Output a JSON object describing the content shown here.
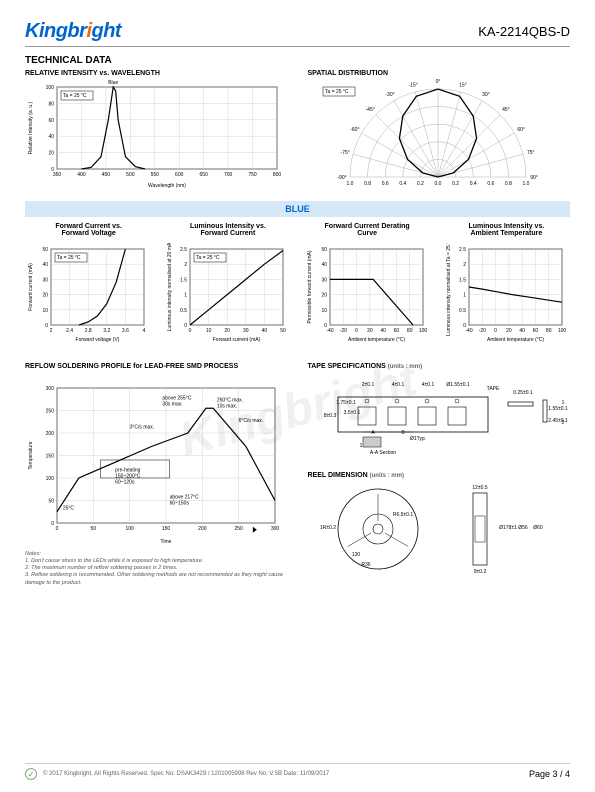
{
  "header": {
    "logo_part1": "Kingbr",
    "logo_part2": "i",
    "logo_part3": "ght",
    "part_number": "KA-2214QBS-D"
  },
  "titles": {
    "technical_data": "TECHNICAL DATA",
    "rel_intensity": "RELATIVE INTENSITY vs. WAVELENGTH",
    "spatial": "SPATIAL DISTRIBUTION",
    "blue_band": "BLUE",
    "reflow": "REFLOW SOLDERING PROFILE for LEAD-FREE SMD PROCESS",
    "tape": "TAPE SPECIFICATIONS",
    "tape_units": "(units : mm)",
    "reel": "REEL DIMENSION",
    "reel_units": "(units : mm)"
  },
  "chart1": {
    "type": "line",
    "title": "RELATIVE INTENSITY vs. WAVELENGTH",
    "series_label": "Blue",
    "ta_label": "Ta = 25 °C",
    "xlabel": "Wavelength (nm)",
    "ylabel": "Relative Intensity (a. u.)",
    "xlim": [
      350,
      800
    ],
    "xtick_step": 50,
    "ylim": [
      0,
      100
    ],
    "ytick_step": 20,
    "data_x": [
      400,
      420,
      440,
      455,
      465,
      470,
      475,
      490,
      510,
      530
    ],
    "data_y": [
      0,
      2,
      15,
      60,
      100,
      95,
      60,
      15,
      3,
      0
    ],
    "line_color": "#000000",
    "line_width": 1.2,
    "grid_color": "#cccccc",
    "background_color": "#ffffff"
  },
  "polar": {
    "type": "polar",
    "title": "SPATIAL DISTRIBUTION",
    "ta_label": "Ta = 25 °C",
    "angle_ticks": [
      -90,
      -75,
      -60,
      -45,
      -30,
      -15,
      0,
      15,
      30,
      45,
      60,
      75,
      90
    ],
    "radial_ticks": [
      0,
      0.2,
      0.4,
      0.6,
      0.8,
      1.0
    ],
    "curve_angles": [
      -90,
      -75,
      -60,
      -45,
      -30,
      -15,
      0,
      15,
      30,
      45,
      60,
      75,
      90
    ],
    "curve_values": [
      0,
      0.18,
      0.4,
      0.62,
      0.8,
      0.95,
      1.0,
      0.95,
      0.8,
      0.62,
      0.4,
      0.18,
      0
    ],
    "line_color": "#000000",
    "grid_color": "#999999"
  },
  "quad": [
    {
      "title": "Forward Current vs.\nForward Voltage",
      "ta_label": "Ta = 25 °C",
      "xlabel": "Forward voltage (V)",
      "ylabel": "Forward current (mA)",
      "xlim": [
        2.0,
        4.0
      ],
      "xticks": [
        2.0,
        2.4,
        2.8,
        3.2,
        3.6,
        4.0
      ],
      "ylim": [
        0,
        50
      ],
      "ytick_step": 10,
      "data_x": [
        2.6,
        2.8,
        3.0,
        3.2,
        3.4,
        3.6
      ],
      "data_y": [
        0,
        2,
        6,
        14,
        28,
        50
      ],
      "line_color": "#000000"
    },
    {
      "title": "Luminous Intensity vs.\nForward Current",
      "ta_label": "Ta = 25 °C",
      "xlabel": "Forward current (mA)",
      "ylabel": "Luminous intensity normalised\nat 20 mA",
      "xlim": [
        0,
        50
      ],
      "xtick_step": 10,
      "ylim": [
        0,
        2.5
      ],
      "ytick_step": 0.5,
      "data_x": [
        0,
        10,
        20,
        30,
        40,
        50
      ],
      "data_y": [
        0,
        0.5,
        1.0,
        1.5,
        2.0,
        2.45
      ],
      "line_color": "#000000"
    },
    {
      "title": "Forward Current Derating\nCurve",
      "xlabel": "Ambient temperature (°C)",
      "ylabel": "Permissible forward current (mA)",
      "xlim": [
        -40,
        100
      ],
      "xticks": [
        -40,
        -20,
        0,
        20,
        40,
        60,
        80,
        100
      ],
      "ylim": [
        0,
        50
      ],
      "ytick_step": 10,
      "data_x": [
        -40,
        25,
        85
      ],
      "data_y": [
        30,
        30,
        0
      ],
      "line_color": "#000000"
    },
    {
      "title": "Luminous Intensity vs.\nAmbient Temperature",
      "xlabel": "Ambient temperature (°C)",
      "ylabel": "Luminous intensity normalised\nat Ta = 25 °C",
      "xlim": [
        -40,
        100
      ],
      "xticks": [
        -40,
        -20,
        0,
        20,
        40,
        60,
        80,
        100
      ],
      "ylim": [
        0,
        2.5
      ],
      "ytick_step": 0.5,
      "data_x": [
        -40,
        -20,
        0,
        25,
        50,
        85,
        100
      ],
      "data_y": [
        1.25,
        1.18,
        1.1,
        1.0,
        0.92,
        0.8,
        0.75
      ],
      "line_color": "#000000"
    }
  ],
  "reflow": {
    "type": "line",
    "xlabel": "Time",
    "xunit": "(sec)",
    "ylabel": "Temperature",
    "yunit": "(°C)",
    "xlim": [
      0,
      300
    ],
    "xtick_step": 50,
    "ylim": [
      0,
      300
    ],
    "ytick_step": 50,
    "profile_x": [
      0,
      30,
      130,
      180,
      205,
      215,
      260,
      300
    ],
    "profile_y": [
      25,
      100,
      170,
      200,
      255,
      255,
      170,
      50
    ],
    "annotations": {
      "start": "25°C",
      "preheat": "pre-heating\n150~200°C\n60~120s",
      "slope_up": "3°C/s max.",
      "above255": "above 255°C\n30s max.",
      "peak": "260°C max.\n10s max.",
      "above217": "above 217°C\n60~150s",
      "slope_down": "6°C/s max."
    },
    "line_color": "#000000",
    "grid_color": "#999999"
  },
  "tape": {
    "dims": [
      "2±0.1",
      "4±0.1",
      "4±0.1",
      "Ø1.55±0.1",
      "0.25±0.1",
      "1.75±0.1",
      "3.5±0.1",
      "8±0.3",
      "1.55±0.1",
      "2.45±0.1",
      "1.6±0.1",
      "Ø1Typ.",
      "A",
      "B",
      "A-A Section",
      "TAPE",
      "1",
      "2"
    ]
  },
  "reel": {
    "dims": [
      "1R±0.2",
      "R6.5±0.1",
      "12±0.5",
      "Ø178±1",
      "Ø56",
      "Ø60",
      "9±0.2",
      "130",
      "R36"
    ]
  },
  "notes": {
    "heading": "Notes:",
    "n1": "1. Don't cause stress to the LEDs while it is exposed to high temperature.",
    "n2": "2. The maximum number of reflow soldering passes is 2 times.",
    "n3": "3. Reflow soldering is recommended. Other soldering methods are not recommended as they might cause damage to the product."
  },
  "footer": {
    "copyright": "© 2017 Kingbright. All Rights Reserved.   Spec No: DSAK3429 / 1201005998   Rev No: V.5B   Date: 11/09/2017",
    "page": "Page 3 / 4"
  },
  "watermark": "Kingbright"
}
